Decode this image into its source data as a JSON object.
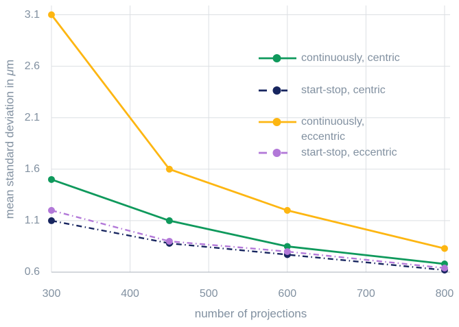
{
  "labels": {
    "xlabel": "number of projections",
    "ylabel_prefix": "mean standard deviation in ",
    "ylabel_mu": "μ",
    "ylabel_suffix": "m"
  },
  "colors": {
    "gridline": "#dcdfe3",
    "axis_line": "#aab1b9",
    "text": "#8190a0",
    "background": "#ffffff",
    "series_green": "#0f995c",
    "series_navy": "#17255f",
    "series_yellow": "#fdb612",
    "series_purple": "#b278d8"
  },
  "chart_data": {
    "type": "line",
    "title": "",
    "xlabel": "number of projections",
    "ylabel": "mean standard deviation in μm",
    "x": [
      300,
      450,
      600,
      800
    ],
    "series": [
      {
        "name": "continuously, centric",
        "legend_lines": [
          "continuously, centric"
        ],
        "values": [
          1.5,
          1.1,
          0.85,
          0.68
        ],
        "color": "#0f995c",
        "style": "solid",
        "marker": "circle"
      },
      {
        "name": "start-stop, centric",
        "legend_lines": [
          "start-stop, centric"
        ],
        "values": [
          1.1,
          0.88,
          0.77,
          0.62
        ],
        "color": "#17255f",
        "style": "dashdot",
        "marker": "circle"
      },
      {
        "name": "continuously, eccentric",
        "legend_lines": [
          "continuously,",
          "eccentric"
        ],
        "values": [
          3.1,
          1.6,
          1.2,
          0.83
        ],
        "color": "#fdb612",
        "style": "solid",
        "marker": "circle"
      },
      {
        "name": "start-stop, eccentric",
        "legend_lines": [
          "start-stop, eccentric"
        ],
        "values": [
          1.2,
          0.9,
          0.8,
          0.64
        ],
        "color": "#b278d8",
        "style": "dashdot",
        "marker": "circle"
      }
    ],
    "x_ticks": [
      "300",
      "400",
      "500",
      "600",
      "700",
      "800"
    ],
    "x_tick_values": [
      300,
      400,
      500,
      600,
      700,
      800
    ],
    "y_ticks": [
      "0.6",
      "1.1",
      "1.6",
      "2.1",
      "2.6",
      "3.1"
    ],
    "y_tick_values": [
      0.6,
      1.1,
      1.6,
      2.1,
      2.6,
      3.1
    ],
    "xlim": [
      300,
      807
    ],
    "ylim": [
      0.6,
      3.19
    ],
    "grid": true,
    "legend_position": "upper-right-inside"
  }
}
